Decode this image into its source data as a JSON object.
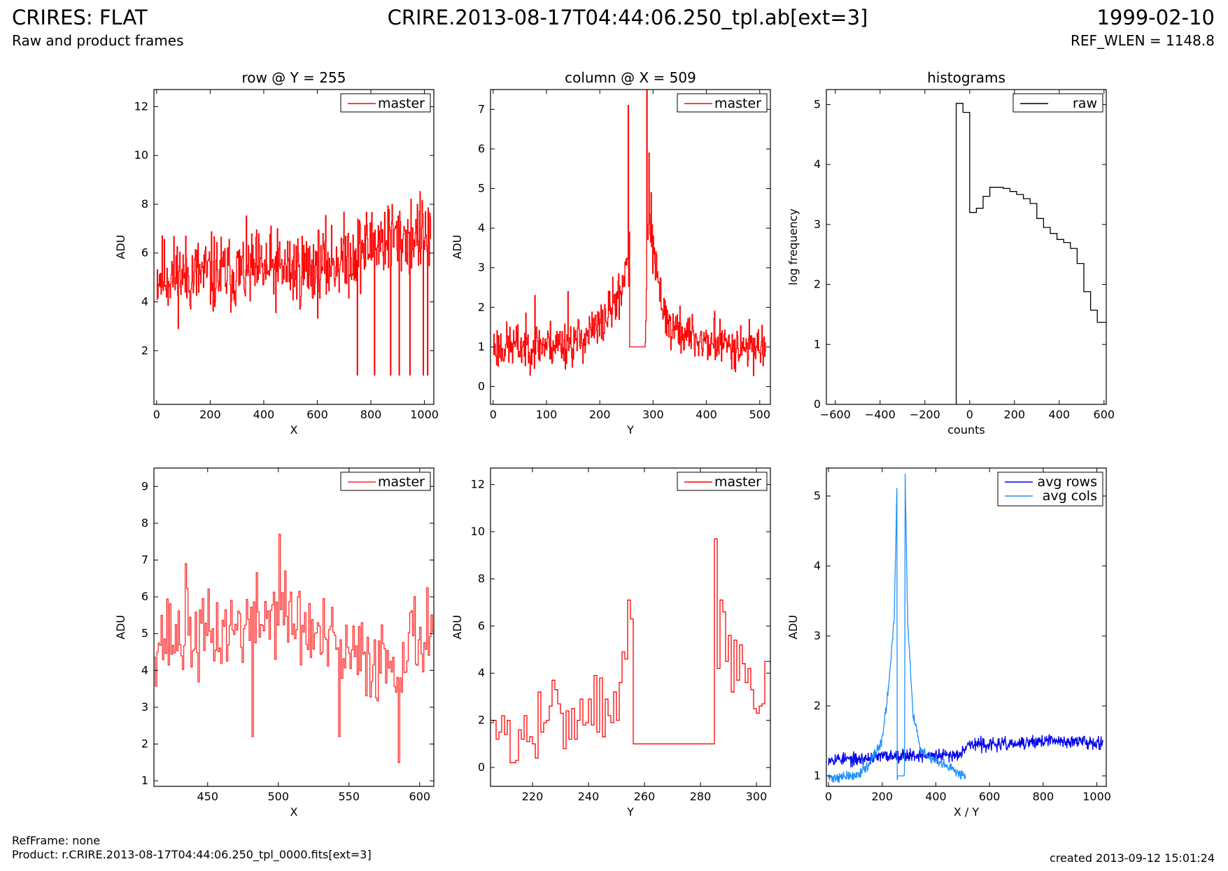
{
  "header": {
    "title_left": "CRIRES: FLAT",
    "subtitle_left": "Raw and product frames",
    "title_center": "CRIRE.2013-08-17T04:44:06.250_tpl.ab[ext=3]",
    "title_right": "1999-02-10",
    "subtitle_right": "REF_WLEN = 1148.8"
  },
  "footer": {
    "ref_frame": "RefFrame: none",
    "product": "Product: r.CRIRE.2013-08-17T04:44:06.250_tpl_0000.fits[ext=3]",
    "created": "created 2013-09-12 15:01:24"
  },
  "colors": {
    "red": "#ff0000",
    "black": "#000000",
    "dark_blue": "#0000ee",
    "light_blue": "#1e90ff"
  },
  "chart_data": [
    {
      "id": "row",
      "type": "line",
      "title": "row @ Y = 255",
      "xlabel": "X",
      "ylabel": "ADU",
      "xlim": [
        -10,
        1035
      ],
      "ylim": [
        -0.2,
        12.7
      ],
      "xticks": [
        0,
        200,
        400,
        600,
        800,
        1000
      ],
      "yticks": [
        2,
        4,
        6,
        8,
        10,
        12
      ],
      "step": true,
      "legend": "top-right",
      "series": [
        {
          "name": "master",
          "color": "#ff0000",
          "gen": "noise",
          "seed": 11,
          "x_start": 0,
          "x_end": 1023,
          "n": 512,
          "knots": [
            [
              0,
              5.1
            ],
            [
              200,
              5.1
            ],
            [
              400,
              5.3
            ],
            [
              600,
              5.4
            ],
            [
              700,
              5.8
            ],
            [
              850,
              6.6
            ],
            [
              1023,
              6.8
            ]
          ],
          "amp": 1.5,
          "clip": [
            1,
            10
          ],
          "drops": [
            [
              748,
              1
            ],
            [
              812,
              1
            ],
            [
              872,
              1
            ],
            [
              905,
              1
            ],
            [
              945,
              1
            ],
            [
              995,
              1
            ],
            [
              1010,
              1
            ]
          ]
        }
      ]
    },
    {
      "id": "column",
      "type": "line",
      "title": "column @ X = 509",
      "xlabel": "Y",
      "ylabel": "ADU",
      "xlim": [
        -5,
        520
      ],
      "ylim": [
        -0.45,
        7.5
      ],
      "xticks": [
        0,
        100,
        200,
        300,
        400,
        500
      ],
      "yticks": [
        0,
        1,
        2,
        3,
        4,
        5,
        6,
        7
      ],
      "step": true,
      "legend": "top-right",
      "series": [
        {
          "name": "master",
          "color": "#ff0000",
          "gen": "noise",
          "seed": 23,
          "x_start": 0,
          "x_end": 511,
          "n": 512,
          "knots": [
            [
              0,
              1.0
            ],
            [
              150,
              1.1
            ],
            [
              200,
              1.5
            ],
            [
              240,
              2.4
            ],
            [
              253,
              3.5
            ],
            [
              256,
              1.0
            ],
            [
              285,
              1.0
            ],
            [
              290,
              4.2
            ],
            [
              310,
              2.5
            ],
            [
              330,
              1.5
            ],
            [
              400,
              1.1
            ],
            [
              511,
              1.0
            ]
          ],
          "amp": 0.55,
          "clip": [
            0.1,
            7.5
          ],
          "flat": [
            [
              256,
              284,
              1.0
            ]
          ],
          "spikes": [
            [
              253,
              7.1
            ],
            [
              255,
              3.9
            ],
            [
              288,
              7.5
            ],
            [
              292,
              5.9
            ],
            [
              296,
              4.9
            ],
            [
              140,
              2.4
            ],
            [
              78,
              2.3
            ],
            [
              415,
              1.9
            ]
          ]
        }
      ]
    },
    {
      "id": "histogram",
      "type": "line",
      "title": "histograms",
      "xlabel": "counts",
      "ylabel": "log frequency",
      "xlim": [
        -640,
        610
      ],
      "ylim": [
        0,
        5.25
      ],
      "xticks": [
        -600,
        -400,
        -200,
        0,
        200,
        400,
        600
      ],
      "yticks": [
        0,
        1,
        2,
        3,
        4,
        5
      ],
      "step": false,
      "legend": "top-right",
      "series": [
        {
          "name": "raw",
          "color": "#000000",
          "gen": "points",
          "points": [
            [
              -60,
              0
            ],
            [
              -60,
              5.02
            ],
            [
              -30,
              5.02
            ],
            [
              -30,
              4.87
            ],
            [
              0,
              4.87
            ],
            [
              0,
              3.2
            ],
            [
              30,
              3.2
            ],
            [
              30,
              3.27
            ],
            [
              60,
              3.27
            ],
            [
              60,
              3.47
            ],
            [
              90,
              3.47
            ],
            [
              90,
              3.62
            ],
            [
              150,
              3.62
            ],
            [
              150,
              3.6
            ],
            [
              180,
              3.6
            ],
            [
              180,
              3.55
            ],
            [
              210,
              3.55
            ],
            [
              210,
              3.5
            ],
            [
              240,
              3.5
            ],
            [
              240,
              3.43
            ],
            [
              270,
              3.43
            ],
            [
              270,
              3.35
            ],
            [
              300,
              3.35
            ],
            [
              300,
              3.1
            ],
            [
              330,
              3.1
            ],
            [
              330,
              2.95
            ],
            [
              360,
              2.95
            ],
            [
              360,
              2.85
            ],
            [
              390,
              2.85
            ],
            [
              390,
              2.75
            ],
            [
              420,
              2.75
            ],
            [
              420,
              2.7
            ],
            [
              450,
              2.7
            ],
            [
              450,
              2.6
            ],
            [
              480,
              2.6
            ],
            [
              480,
              2.35
            ],
            [
              510,
              2.35
            ],
            [
              510,
              1.88
            ],
            [
              540,
              1.88
            ],
            [
              540,
              1.57
            ],
            [
              570,
              1.57
            ],
            [
              570,
              1.37
            ],
            [
              610,
              1.37
            ]
          ]
        }
      ]
    },
    {
      "id": "row-zoom",
      "type": "line",
      "title": "",
      "xlabel": "X",
      "ylabel": "ADU",
      "xlim": [
        412,
        610
      ],
      "ylim": [
        0.85,
        9.5
      ],
      "xticks": [
        450,
        500,
        550,
        600
      ],
      "yticks": [
        1,
        2,
        3,
        4,
        5,
        6,
        7,
        8,
        9
      ],
      "step": true,
      "legend": "top-right",
      "series": [
        {
          "name": "master",
          "color": "#ff2a2a",
          "gen": "noise",
          "seed": 37,
          "x_start": 412,
          "x_end": 610,
          "n": 198,
          "knots": [
            [
              412,
              4.9
            ],
            [
              450,
              4.9
            ],
            [
              500,
              5.6
            ],
            [
              550,
              4.3
            ],
            [
              580,
              4.3
            ],
            [
              610,
              5.3
            ]
          ],
          "amp": 1.1,
          "clip": [
            1.5,
            7.7
          ],
          "spikes": [
            [
              500,
              7.7
            ],
            [
              481,
              2.2
            ],
            [
              585,
              1.5
            ],
            [
              543,
              2.2
            ],
            [
              434,
              6.9
            ]
          ]
        }
      ]
    },
    {
      "id": "column-zoom",
      "type": "line",
      "title": "",
      "xlabel": "Y",
      "ylabel": "ADU",
      "xlim": [
        205,
        305
      ],
      "ylim": [
        -0.8,
        12.7
      ],
      "xticks": [
        220,
        240,
        260,
        280,
        300
      ],
      "yticks": [
        0,
        2,
        4,
        6,
        8,
        10,
        12
      ],
      "step": true,
      "legend": "top-right",
      "series": [
        {
          "name": "master",
          "color": "#ff0000",
          "gen": "points",
          "points": [
            [
              205,
              1.9
            ],
            [
              206,
              2.0
            ],
            [
              207,
              1.2
            ],
            [
              208,
              1.5
            ],
            [
              209,
              2.2
            ],
            [
              210,
              1.4
            ],
            [
              211,
              2.0
            ],
            [
              212,
              0.2
            ],
            [
              213,
              0.2
            ],
            [
              214,
              0.3
            ],
            [
              215,
              1.6
            ],
            [
              216,
              1.2
            ],
            [
              217,
              2.2
            ],
            [
              218,
              1.1
            ],
            [
              219,
              1.3
            ],
            [
              220,
              1.0
            ],
            [
              221,
              0.4
            ],
            [
              222,
              3.2
            ],
            [
              223,
              1.5
            ],
            [
              224,
              1.9
            ],
            [
              225,
              2.0
            ],
            [
              226,
              2.6
            ],
            [
              227,
              3.7
            ],
            [
              228,
              3.3
            ],
            [
              229,
              2.7
            ],
            [
              230,
              2.3
            ],
            [
              231,
              0.8
            ],
            [
              232,
              2.4
            ],
            [
              233,
              1.2
            ],
            [
              234,
              2.5
            ],
            [
              235,
              1.2
            ],
            [
              236,
              2.0
            ],
            [
              237,
              2.9
            ],
            [
              238,
              1.8
            ],
            [
              239,
              1.9
            ],
            [
              240,
              2.9
            ],
            [
              241,
              1.8
            ],
            [
              242,
              3.9
            ],
            [
              243,
              1.5
            ],
            [
              244,
              3.8
            ],
            [
              245,
              1.3
            ],
            [
              246,
              2.9
            ],
            [
              247,
              2.2
            ],
            [
              248,
              1.9
            ],
            [
              249,
              3.2
            ],
            [
              250,
              2.0
            ],
            [
              251,
              3.6
            ],
            [
              252,
              4.9
            ],
            [
              253,
              4.6
            ],
            [
              254,
              7.1
            ],
            [
              255,
              6.3
            ],
            [
              256,
              1.0
            ],
            [
              285,
              1.0
            ],
            [
              285,
              9.7
            ],
            [
              286,
              4.2
            ],
            [
              287,
              7.1
            ],
            [
              288,
              6.6
            ],
            [
              289,
              4.5
            ],
            [
              290,
              5.6
            ],
            [
              291,
              3.2
            ],
            [
              292,
              5.4
            ],
            [
              293,
              3.7
            ],
            [
              294,
              5.2
            ],
            [
              295,
              4.4
            ],
            [
              296,
              3.6
            ],
            [
              297,
              4.2
            ],
            [
              298,
              3.3
            ],
            [
              299,
              2.5
            ],
            [
              300,
              2.3
            ],
            [
              301,
              2.6
            ],
            [
              302,
              2.7
            ],
            [
              303,
              4.5
            ],
            [
              305,
              4.4
            ]
          ]
        }
      ]
    },
    {
      "id": "averages",
      "type": "line",
      "title": "",
      "xlabel": "X / Y",
      "ylabel": "ADU",
      "xlim": [
        -8,
        1035
      ],
      "ylim": [
        0.85,
        5.4
      ],
      "xticks": [
        0,
        200,
        400,
        600,
        800,
        1000
      ],
      "yticks": [
        1,
        2,
        3,
        4,
        5
      ],
      "step": false,
      "legend": "top-right",
      "series": [
        {
          "name": "avg rows",
          "color": "#0000ee",
          "gen": "noise",
          "seed": 53,
          "x_start": 0,
          "x_end": 1023,
          "n": 700,
          "knots": [
            [
              0,
              1.25
            ],
            [
              100,
              1.23
            ],
            [
              200,
              1.28
            ],
            [
              300,
              1.3
            ],
            [
              400,
              1.28
            ],
            [
              480,
              1.3
            ],
            [
              520,
              1.45
            ],
            [
              700,
              1.45
            ],
            [
              800,
              1.5
            ],
            [
              1023,
              1.48
            ]
          ],
          "amp": 0.09,
          "clip": [
            1.05,
            1.7
          ]
        },
        {
          "name": "avg cols",
          "color": "#1e90ff",
          "gen": "noise",
          "seed": 71,
          "x_start": 0,
          "x_end": 511,
          "n": 400,
          "knots": [
            [
              0,
              0.97
            ],
            [
              100,
              1.0
            ],
            [
              150,
              1.15
            ],
            [
              200,
              1.5
            ],
            [
              225,
              2.3
            ],
            [
              245,
              3.3
            ],
            [
              255,
              5.1
            ],
            [
              256,
              1.0
            ],
            [
              284,
              1.0
            ],
            [
              285,
              5.4
            ],
            [
              295,
              3.2
            ],
            [
              315,
              1.9
            ],
            [
              345,
              1.35
            ],
            [
              400,
              1.2
            ],
            [
              511,
              1.0
            ]
          ],
          "amp": 0.07,
          "clip": [
            0.9,
            5.4
          ],
          "flat": [
            [
              257,
              283,
              1.0
            ]
          ]
        }
      ]
    }
  ]
}
